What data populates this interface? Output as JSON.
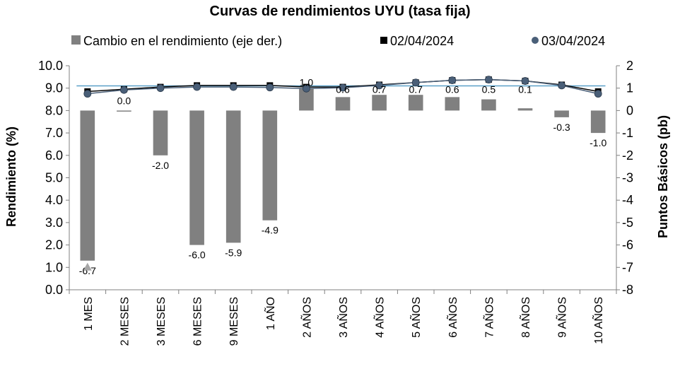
{
  "chart_data": {
    "type": "bar",
    "title": "Curvas de rendimientos UYU (tasa fija)",
    "ylabel": "Rendimiento (%)",
    "y2label": "Puntos Básicos (pb)",
    "ylim": [
      0,
      10
    ],
    "y2lim": [
      -8,
      2
    ],
    "yticks": [
      "0.0",
      "1.0",
      "2.0",
      "3.0",
      "4.0",
      "5.0",
      "6.0",
      "7.0",
      "8.0",
      "9.0",
      "10.0"
    ],
    "y2ticks": [
      "-8",
      "-7",
      "-6",
      "-5",
      "-4",
      "-3",
      "-2",
      "-1",
      "0",
      "1",
      "2"
    ],
    "categories": [
      "1 MES",
      "2 MESES",
      "3 MESES",
      "6 MESES",
      "9 MESES",
      "1 AÑO",
      "2 AÑOS",
      "3 AÑOS",
      "4 AÑOS",
      "5 AÑOS",
      "6 AÑOS",
      "7 AÑOS",
      "8 AÑOS",
      "9 AÑOS",
      "10 AÑOS"
    ],
    "legend_position": "top",
    "grid": false,
    "series": [
      {
        "name": "Cambio en el rendimiento (eje der.)",
        "kind": "bar",
        "axis": "right",
        "color": "#808080",
        "values": [
          -6.7,
          0.0,
          -2.0,
          -6.0,
          -5.9,
          -4.9,
          1.0,
          0.6,
          0.7,
          0.7,
          0.6,
          0.5,
          0.1,
          -0.3,
          -1.0
        ],
        "labels": [
          "-6.7",
          "0.0",
          "-2.0",
          "-6.0",
          "-5.9",
          "-4.9",
          "1.0",
          "0.6",
          "0.7",
          "0.7",
          "0.6",
          "0.5",
          "0.1",
          "-0.3",
          "-1.0"
        ]
      },
      {
        "name": "02/04/2024",
        "kind": "line-marker",
        "axis": "left",
        "color": "#000000",
        "marker": "square",
        "values": [
          8.85,
          8.95,
          9.05,
          9.12,
          9.12,
          9.12,
          9.05,
          9.05,
          9.15,
          9.25,
          9.35,
          9.38,
          9.32,
          9.15,
          8.85
        ]
      },
      {
        "name": "03/04/2024",
        "kind": "line-marker",
        "axis": "left",
        "color": "#4a5f78",
        "marker": "circle",
        "values": [
          8.75,
          8.92,
          9.0,
          9.05,
          9.05,
          9.03,
          8.98,
          9.02,
          9.12,
          9.25,
          9.35,
          9.38,
          9.32,
          9.12,
          8.75
        ]
      }
    ],
    "reference_line": {
      "color": "#5aa0c8",
      "value_right_axis": 1.1
    }
  }
}
